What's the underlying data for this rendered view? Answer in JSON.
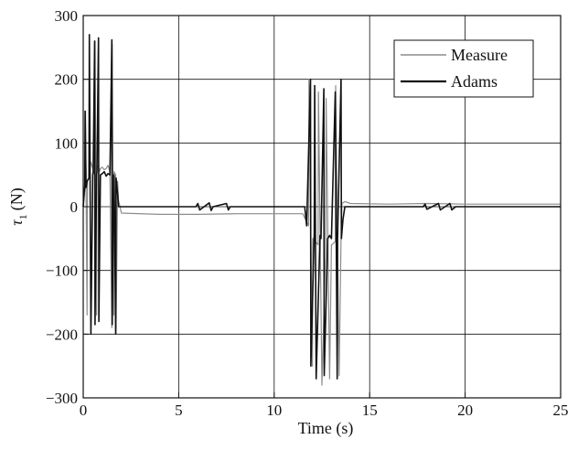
{
  "chart_data": {
    "type": "line",
    "title": "",
    "xlabel": "Time (s)",
    "ylabel_symbol": "τ",
    "ylabel_subscript": "1",
    "ylabel_unit": "(N)",
    "xlim": [
      0,
      25
    ],
    "ylim": [
      -300,
      300
    ],
    "xticks": [
      0,
      5,
      10,
      15,
      20,
      25
    ],
    "yticks": [
      -300,
      -200,
      -100,
      0,
      100,
      200,
      300
    ],
    "xtick_labels": [
      "0",
      "5",
      "10",
      "15",
      "20",
      "25"
    ],
    "ytick_labels": [
      "−300",
      "−200",
      "−100",
      "0",
      "100",
      "200",
      "300"
    ],
    "grid": true,
    "legend_position": "top-right",
    "series": [
      {
        "name": "Measure",
        "color": "#8c8c8c",
        "x": [
          0,
          0.1,
          0.12,
          0.2,
          0.22,
          0.3,
          0.35,
          0.4,
          0.6,
          0.62,
          0.7,
          0.72,
          0.8,
          0.85,
          0.9,
          1.0,
          1.1,
          1.2,
          1.3,
          1.4,
          1.5,
          1.52,
          1.6,
          1.62,
          1.7,
          1.72,
          1.8,
          1.85,
          2.0,
          4.0,
          6.0,
          8.0,
          10.0,
          11.5,
          11.8,
          11.82,
          12.0,
          12.02,
          12.3,
          12.32,
          12.5,
          12.7,
          12.72,
          12.9,
          13.0,
          13.2,
          13.22,
          13.4,
          13.5,
          13.55,
          13.7,
          14.0,
          16.0,
          18.0,
          20.0,
          22.0,
          25.0
        ],
        "y": [
          0,
          30,
          150,
          -170,
          40,
          45,
          60,
          70,
          50,
          260,
          -170,
          60,
          65,
          55,
          60,
          62,
          58,
          60,
          65,
          55,
          -190,
          255,
          -170,
          55,
          50,
          -200,
          40,
          10,
          -10,
          -12,
          -12,
          -11,
          -11,
          -11,
          -30,
          200,
          -250,
          -50,
          -60,
          180,
          -280,
          -60,
          170,
          -270,
          -60,
          -55,
          190,
          -265,
          -50,
          5,
          8,
          5,
          4,
          5,
          4,
          4,
          4
        ]
      },
      {
        "name": "Adams",
        "color": "#111111",
        "x": [
          0,
          0.08,
          0.1,
          0.15,
          0.2,
          0.3,
          0.32,
          0.4,
          0.5,
          0.52,
          0.6,
          0.62,
          0.7,
          0.72,
          0.8,
          0.82,
          0.9,
          1.0,
          1.1,
          1.2,
          1.3,
          1.4,
          1.5,
          1.52,
          1.6,
          1.62,
          1.7,
          1.72,
          1.8,
          1.85,
          2.0,
          4.0,
          5.9,
          6.0,
          6.1,
          6.6,
          6.7,
          6.8,
          7.5,
          7.6,
          7.7,
          8.0,
          10.0,
          11.6,
          11.7,
          11.9,
          11.92,
          12.1,
          12.12,
          12.2,
          12.4,
          12.45,
          12.6,
          12.62,
          12.8,
          12.9,
          13.0,
          13.2,
          13.3,
          13.32,
          13.5,
          13.52,
          13.6,
          13.7,
          14.0,
          17.8,
          17.9,
          18.0,
          18.6,
          18.7,
          19.2,
          19.3,
          19.5,
          20.0,
          22.0,
          25.0
        ],
        "y": [
          0,
          35,
          150,
          30,
          40,
          45,
          270,
          -200,
          50,
          55,
          260,
          -185,
          50,
          55,
          265,
          -180,
          50,
          52,
          55,
          48,
          52,
          50,
          262,
          -185,
          50,
          48,
          -200,
          45,
          20,
          0,
          0,
          0,
          0,
          5,
          -5,
          6,
          -6,
          0,
          5,
          -5,
          0,
          0,
          0,
          0,
          -30,
          200,
          -250,
          -40,
          190,
          -270,
          -45,
          -50,
          185,
          -265,
          -50,
          -45,
          -50,
          180,
          -270,
          -50,
          200,
          -50,
          -20,
          0,
          0,
          0,
          4,
          -4,
          5,
          -5,
          5,
          -5,
          0,
          0,
          0,
          0
        ]
      }
    ]
  }
}
